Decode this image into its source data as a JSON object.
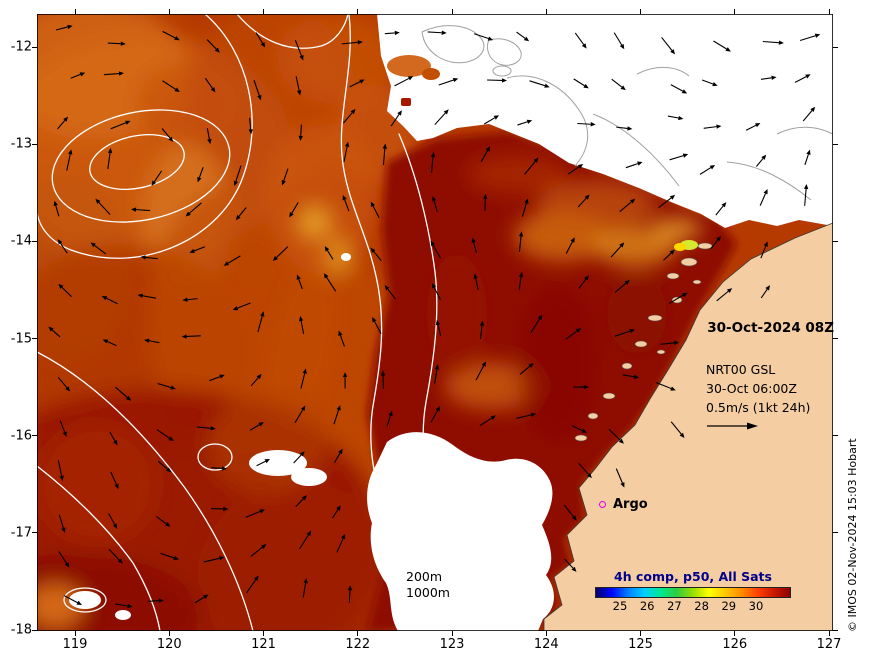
{
  "annotations": {
    "datetime": "30-Oct-2024 08Z",
    "model_name": "NRT00 GSL",
    "model_time": "30-Oct 06:00Z",
    "vector_scale": "0.5m/s (1kt 24h)",
    "argo_label": "Argo",
    "depth_200": "200m",
    "depth_1000": "1000m",
    "credit": "© IMOS 02-Nov-2024 15:03 Hobart"
  },
  "axes": {
    "x_ticks": [
      "119",
      "120",
      "121",
      "122",
      "123",
      "124",
      "125",
      "126",
      "127"
    ],
    "y_ticks": [
      "-12",
      "-13",
      "-14",
      "-15",
      "-16",
      "-17",
      "-18"
    ]
  },
  "colorbar": {
    "title": "4h comp, p50, All Sats",
    "ticks": [
      "25",
      "26",
      "27",
      "28",
      "29",
      "30"
    ],
    "gradient": [
      "#08006d",
      "#0008ff",
      "#0080ff",
      "#00d0ff",
      "#00e890",
      "#2ecc40",
      "#9ade00",
      "#ffff00",
      "#ffc800",
      "#ff8c00",
      "#ff4000",
      "#cc1800",
      "#8b0000"
    ]
  },
  "colors": {
    "land": "#f5cda2",
    "ocean_base": "#b53a00",
    "ocean_hot": "#8e0d00",
    "no_data": "#ffffff",
    "contour": "#ffffff",
    "coast": "#a0a0a0",
    "vector": "#000000",
    "argo_marker": "#ee00ee",
    "frame": "#000000",
    "colorbar_title": "#00008b"
  }
}
